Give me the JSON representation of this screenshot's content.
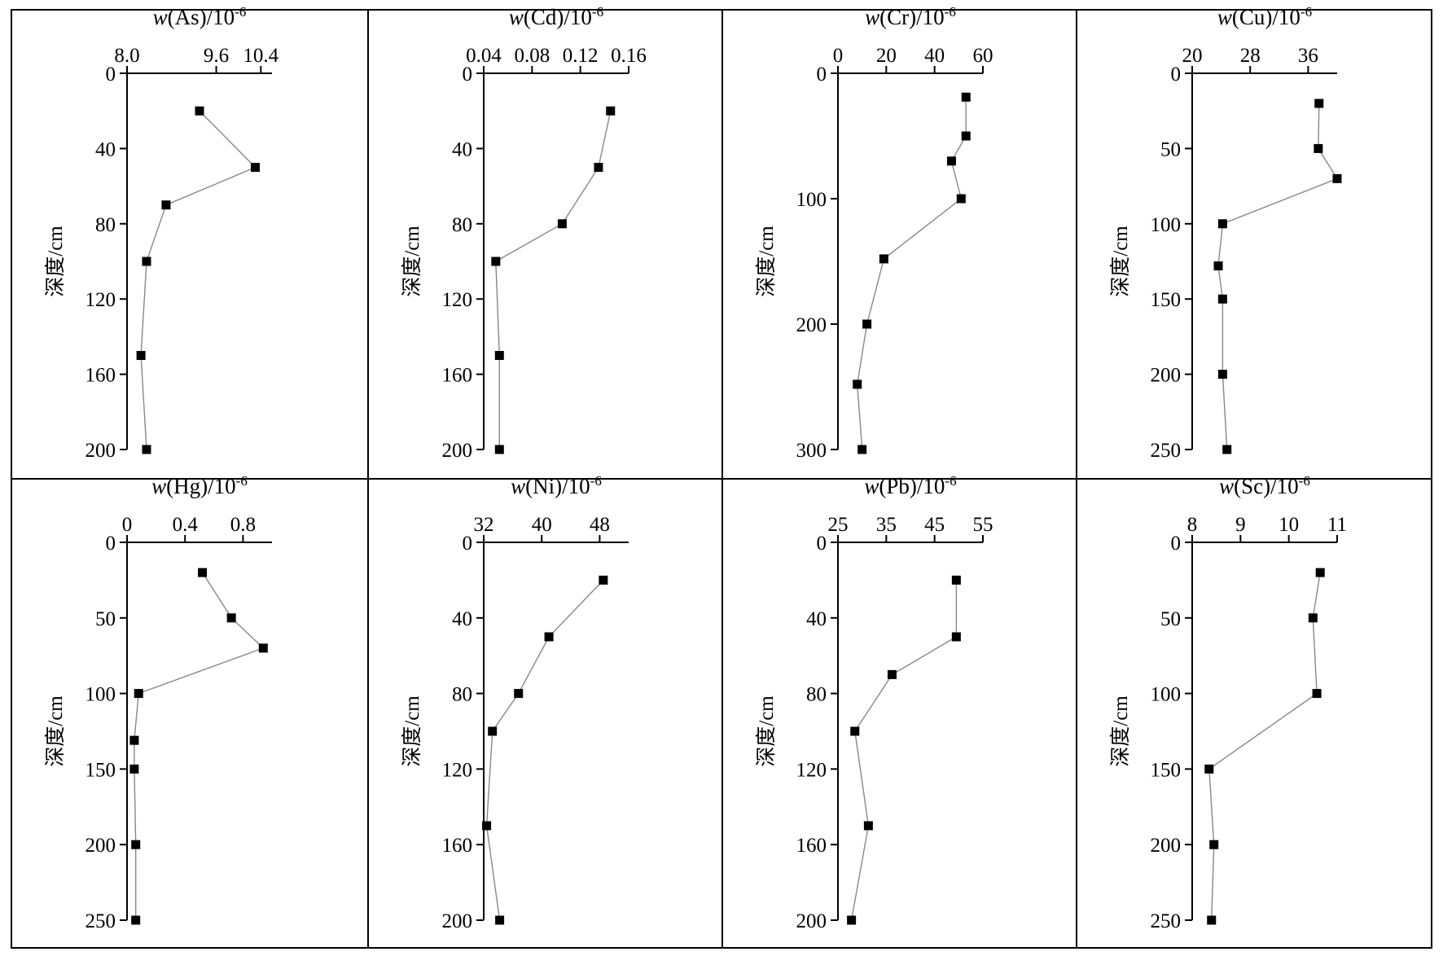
{
  "figure": {
    "background": "#ffffff",
    "line_color": "#000000",
    "series_line_color": "#888888",
    "marker_color": "#000000"
  },
  "chart_data": [
    {
      "type": "line",
      "title_italic": "w",
      "title_rest": "(As)/10",
      "title_sup": "-6",
      "ylabel": "深度/cm",
      "xlim": [
        8.0,
        10.6
      ],
      "ylim": [
        0,
        200
      ],
      "xticks": [
        8.0,
        9.6,
        10.4
      ],
      "xtick_labels": [
        "8.0",
        "9.6",
        "10.4"
      ],
      "yticks": [
        0,
        40,
        80,
        120,
        160,
        200
      ],
      "ytick_labels": [
        "0",
        "40",
        "80",
        "120",
        "160",
        "200"
      ],
      "points": [
        {
          "x": 9.3,
          "y": 20
        },
        {
          "x": 10.3,
          "y": 50
        },
        {
          "x": 8.7,
          "y": 70
        },
        {
          "x": 8.35,
          "y": 100
        },
        {
          "x": 8.25,
          "y": 150
        },
        {
          "x": 8.35,
          "y": 200
        }
      ]
    },
    {
      "type": "line",
      "title_italic": "w",
      "title_rest": "(Cd)/10",
      "title_sup": "-6",
      "ylabel": "深度/cm",
      "xlim": [
        0.04,
        0.16
      ],
      "ylim": [
        0,
        200
      ],
      "xticks": [
        0.04,
        0.08,
        0.12,
        0.16
      ],
      "xtick_labels": [
        "0.04",
        "0.08",
        "0.12",
        "0.16"
      ],
      "yticks": [
        0,
        40,
        80,
        120,
        160,
        200
      ],
      "ytick_labels": [
        "0",
        "40",
        "80",
        "120",
        "160",
        "200"
      ],
      "points": [
        {
          "x": 0.145,
          "y": 20
        },
        {
          "x": 0.135,
          "y": 50
        },
        {
          "x": 0.105,
          "y": 80
        },
        {
          "x": 0.05,
          "y": 100
        },
        {
          "x": 0.053,
          "y": 150
        },
        {
          "x": 0.053,
          "y": 200
        }
      ]
    },
    {
      "type": "line",
      "title_italic": "w",
      "title_rest": "(Cr)/10",
      "title_sup": "-6",
      "ylabel": "深度/cm",
      "xlim": [
        0,
        60
      ],
      "ylim": [
        0,
        300
      ],
      "xticks": [
        0,
        20,
        40,
        60
      ],
      "xtick_labels": [
        "0",
        "20",
        "40",
        "60"
      ],
      "yticks": [
        0,
        100,
        200,
        300
      ],
      "ytick_labels": [
        "0",
        "100",
        "200",
        "300"
      ],
      "points": [
        {
          "x": 53,
          "y": 19
        },
        {
          "x": 53,
          "y": 50
        },
        {
          "x": 47,
          "y": 70
        },
        {
          "x": 51,
          "y": 100
        },
        {
          "x": 19,
          "y": 148
        },
        {
          "x": 12,
          "y": 200
        },
        {
          "x": 8,
          "y": 248
        },
        {
          "x": 10,
          "y": 300
        }
      ]
    },
    {
      "type": "line",
      "title_italic": "w",
      "title_rest": "(Cu)/10",
      "title_sup": "-6",
      "ylabel": "深度/cm",
      "xlim": [
        20,
        40
      ],
      "ylim": [
        0,
        250
      ],
      "xticks": [
        20,
        28,
        36
      ],
      "xtick_labels": [
        "20",
        "28",
        "36"
      ],
      "yticks": [
        0,
        50,
        100,
        150,
        200,
        250
      ],
      "ytick_labels": [
        "0",
        "50",
        "100",
        "150",
        "200",
        "250"
      ],
      "points": [
        {
          "x": 37.5,
          "y": 20
        },
        {
          "x": 37.4,
          "y": 50
        },
        {
          "x": 40,
          "y": 70
        },
        {
          "x": 24.2,
          "y": 100
        },
        {
          "x": 23.6,
          "y": 128
        },
        {
          "x": 24.2,
          "y": 150
        },
        {
          "x": 24.2,
          "y": 200
        },
        {
          "x": 24.8,
          "y": 250
        }
      ]
    },
    {
      "type": "line",
      "title_italic": "w",
      "title_rest": "(Hg)/10",
      "title_sup": "-6",
      "ylabel": "深度/cm",
      "xlim": [
        0,
        1.0
      ],
      "ylim": [
        0,
        250
      ],
      "xticks": [
        0,
        0.4,
        0.8
      ],
      "xtick_labels": [
        "0",
        "0.4",
        "0.8"
      ],
      "yticks": [
        0,
        50,
        100,
        150,
        200,
        250
      ],
      "ytick_labels": [
        "0",
        "50",
        "100",
        "150",
        "200",
        "250"
      ],
      "points": [
        {
          "x": 0.52,
          "y": 20
        },
        {
          "x": 0.72,
          "y": 50
        },
        {
          "x": 0.94,
          "y": 70
        },
        {
          "x": 0.08,
          "y": 100
        },
        {
          "x": 0.05,
          "y": 131
        },
        {
          "x": 0.05,
          "y": 150
        },
        {
          "x": 0.06,
          "y": 200
        },
        {
          "x": 0.06,
          "y": 250
        }
      ]
    },
    {
      "type": "line",
      "title_italic": "w",
      "title_rest": "(Ni)/10",
      "title_sup": "-6",
      "ylabel": "深度/cm",
      "xlim": [
        32,
        52
      ],
      "ylim": [
        0,
        200
      ],
      "xticks": [
        32,
        40,
        48
      ],
      "xtick_labels": [
        "32",
        "40",
        "48"
      ],
      "yticks": [
        0,
        40,
        80,
        120,
        160,
        200
      ],
      "ytick_labels": [
        "0",
        "40",
        "80",
        "120",
        "160",
        "200"
      ],
      "points": [
        {
          "x": 48.5,
          "y": 20
        },
        {
          "x": 41,
          "y": 50
        },
        {
          "x": 36.8,
          "y": 80
        },
        {
          "x": 33.2,
          "y": 100
        },
        {
          "x": 32.4,
          "y": 150
        },
        {
          "x": 34.2,
          "y": 200
        }
      ]
    },
    {
      "type": "line",
      "title_italic": "w",
      "title_rest": "(Pb)/10",
      "title_sup": "-6",
      "ylabel": "深度/cm",
      "xlim": [
        25,
        55
      ],
      "ylim": [
        0,
        200
      ],
      "xticks": [
        25,
        35,
        45,
        55
      ],
      "xtick_labels": [
        "25",
        "35",
        "45",
        "55"
      ],
      "yticks": [
        0,
        40,
        80,
        120,
        160,
        200
      ],
      "ytick_labels": [
        "0",
        "40",
        "80",
        "120",
        "160",
        "200"
      ],
      "points": [
        {
          "x": 49.5,
          "y": 20
        },
        {
          "x": 49.5,
          "y": 50
        },
        {
          "x": 36.2,
          "y": 70
        },
        {
          "x": 28.5,
          "y": 100
        },
        {
          "x": 31.3,
          "y": 150
        },
        {
          "x": 27.8,
          "y": 200
        }
      ]
    },
    {
      "type": "line",
      "title_italic": "w",
      "title_rest": "(Sc)/10",
      "title_sup": "-6",
      "ylabel": "深度/cm",
      "xlim": [
        8,
        11
      ],
      "ylim": [
        0,
        250
      ],
      "xticks": [
        8,
        9,
        10,
        11
      ],
      "xtick_labels": [
        "8",
        "9",
        "10",
        "11"
      ],
      "yticks": [
        0,
        50,
        100,
        150,
        200,
        250
      ],
      "ytick_labels": [
        "0",
        "50",
        "100",
        "150",
        "200",
        "250"
      ],
      "points": [
        {
          "x": 10.65,
          "y": 20
        },
        {
          "x": 10.5,
          "y": 50
        },
        {
          "x": 10.58,
          "y": 100
        },
        {
          "x": 8.35,
          "y": 150
        },
        {
          "x": 8.45,
          "y": 200
        },
        {
          "x": 8.4,
          "y": 250
        }
      ]
    }
  ]
}
